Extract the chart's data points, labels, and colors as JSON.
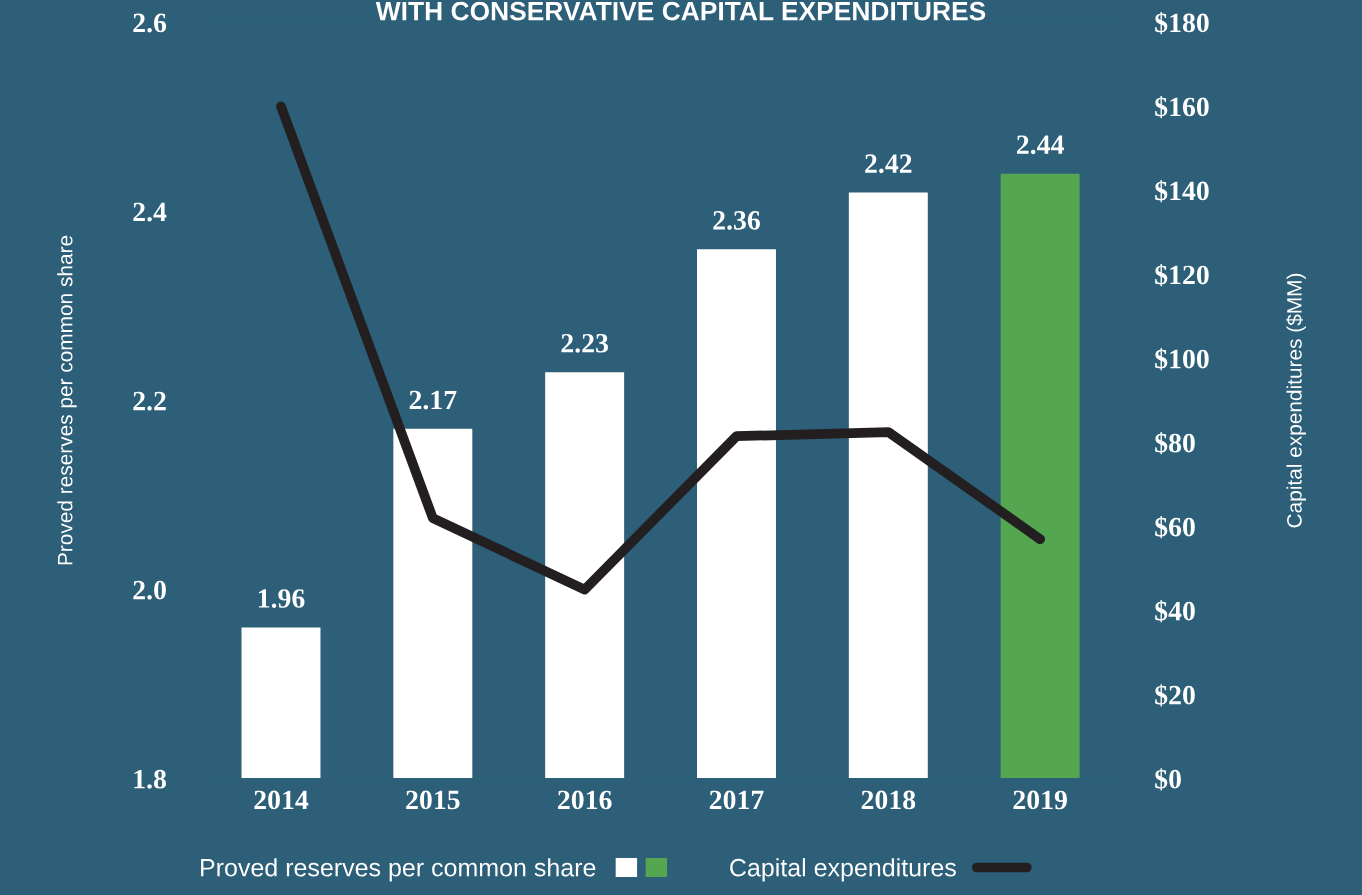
{
  "chart_data": {
    "type": "bar",
    "title": "WITH CONSERVATIVE CAPITAL EXPENDITURES",
    "categories": [
      "2014",
      "2015",
      "2016",
      "2017",
      "2018",
      "2019"
    ],
    "series": [
      {
        "name": "Proved reserves per common share",
        "colors": [
          "#ffffff",
          "#ffffff",
          "#ffffff",
          "#ffffff",
          "#ffffff",
          "#55a651"
        ],
        "values": [
          1.96,
          2.17,
          2.23,
          2.36,
          2.42,
          2.44
        ],
        "value_labels": [
          "1.96",
          "2.17",
          "2.23",
          "2.36",
          "2.42",
          "2.44"
        ]
      },
      {
        "name": "Capital expenditures",
        "type": "line",
        "axis": "y2",
        "color": "#231f20",
        "values": [
          160,
          62,
          45,
          81.5,
          82.5,
          57
        ]
      }
    ],
    "ylabel": "Proved reserves per common share",
    "y2label": "Capital expenditures ($MM)",
    "ylim": [
      1.8,
      2.6
    ],
    "yticks": [
      {
        "value": 1.8,
        "label": "1.8"
      },
      {
        "value": 2.0,
        "label": "2.0"
      },
      {
        "value": 2.2,
        "label": "2.2"
      },
      {
        "value": 2.4,
        "label": "2.4"
      },
      {
        "value": 2.6,
        "label": "2.6"
      }
    ],
    "y2lim": [
      0,
      180
    ],
    "y2ticks": [
      {
        "value": 0,
        "label": "$0"
      },
      {
        "value": 20,
        "label": "$20"
      },
      {
        "value": 40,
        "label": "$40"
      },
      {
        "value": 60,
        "label": "$60"
      },
      {
        "value": 80,
        "label": "$80"
      },
      {
        "value": 100,
        "label": "$100"
      },
      {
        "value": 120,
        "label": "$120"
      },
      {
        "value": 140,
        "label": "$140"
      },
      {
        "value": 160,
        "label": "$160"
      },
      {
        "value": 180,
        "label": "$180"
      }
    ],
    "grid": false,
    "legend": "bottom",
    "marker": "none",
    "line_style": "solid"
  }
}
